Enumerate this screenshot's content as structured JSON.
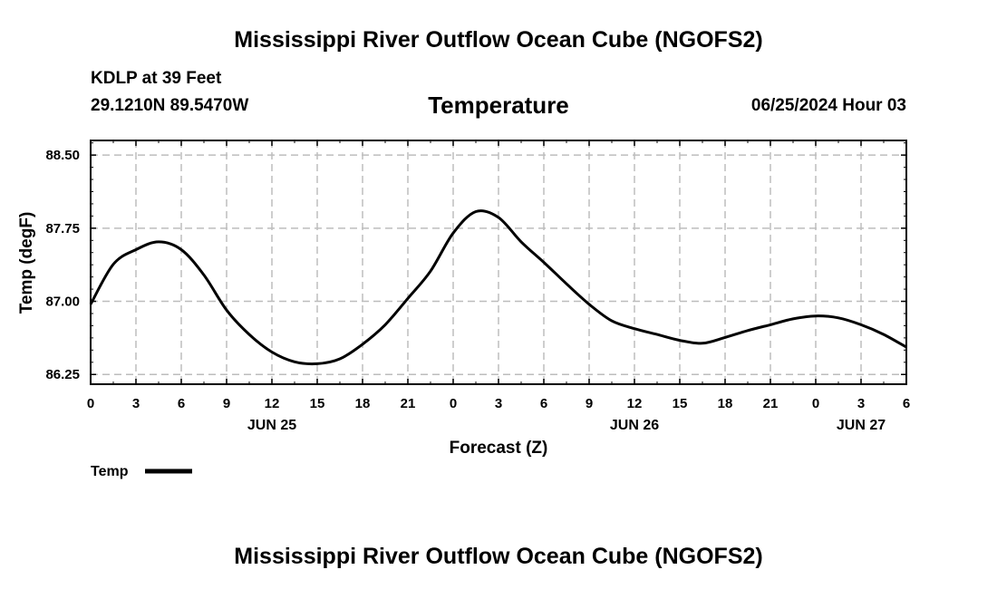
{
  "header": {
    "title": "Mississippi River Outflow Ocean Cube (NGOFS2)",
    "station_line1": "KDLP at 39 Feet",
    "station_line2": "29.1210N  89.5470W",
    "subtitle": "Temperature",
    "datetime": "06/25/2024 Hour 03"
  },
  "footer": {
    "title": "Mississippi River Outflow Ocean Cube (NGOFS2)"
  },
  "chart_data": {
    "type": "line",
    "title": "Temperature",
    "xlabel": "Forecast (Z)",
    "ylabel": "Temp (degF)",
    "xlim": [
      0,
      54
    ],
    "ylim": [
      86.15,
      88.65
    ],
    "x_tick_hours": [
      0,
      3,
      6,
      9,
      12,
      15,
      18,
      21,
      24,
      27,
      30,
      33,
      36,
      39,
      42,
      45,
      48,
      51,
      54
    ],
    "x_tick_labels": [
      "0",
      "3",
      "6",
      "9",
      "12",
      "15",
      "18",
      "21",
      "0",
      "3",
      "6",
      "9",
      "12",
      "15",
      "18",
      "21",
      "0",
      "3",
      "6"
    ],
    "date_labels": [
      {
        "hour": 12,
        "label": "JUN 25"
      },
      {
        "hour": 36,
        "label": "JUN 26"
      },
      {
        "hour": 51,
        "label": "JUN 27"
      }
    ],
    "y_ticks": [
      86.25,
      87.0,
      87.75,
      88.5
    ],
    "y_tick_labels": [
      "86.25",
      "87.00",
      "87.75",
      "88.50"
    ],
    "grid": true,
    "legend": {
      "position": "bottom-left",
      "entries": [
        {
          "label": "Temp"
        }
      ]
    },
    "series": [
      {
        "name": "Temp",
        "x": [
          0,
          1.5,
          3,
          4.5,
          6,
          7.5,
          9,
          10.5,
          12,
          13.5,
          15,
          16.5,
          18,
          19.5,
          21,
          22.5,
          24,
          25.5,
          27,
          28.5,
          30,
          31.5,
          33,
          34.5,
          36,
          37.5,
          39,
          40.5,
          42,
          43.5,
          45,
          46.5,
          48,
          49.5,
          51,
          52.5,
          54
        ],
        "values": [
          86.97,
          87.38,
          87.53,
          87.61,
          87.53,
          87.27,
          86.91,
          86.66,
          86.48,
          86.38,
          86.36,
          86.41,
          86.56,
          86.76,
          87.03,
          87.31,
          87.7,
          87.92,
          87.86,
          87.61,
          87.4,
          87.18,
          86.97,
          86.8,
          86.72,
          86.66,
          86.6,
          86.57,
          86.63,
          86.7,
          86.76,
          86.82,
          86.85,
          86.83,
          86.76,
          86.66,
          86.53
        ]
      }
    ]
  }
}
